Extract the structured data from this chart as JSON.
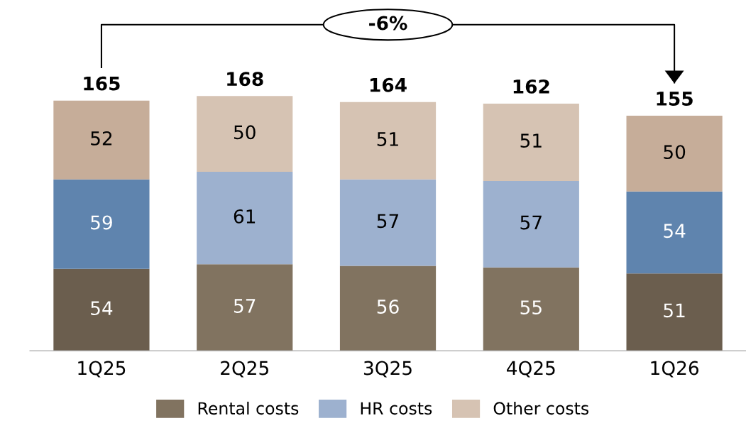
{
  "chart_data": {
    "type": "bar",
    "stacked": true,
    "categories": [
      "1Q25",
      "2Q25",
      "3Q25",
      "4Q25",
      "1Q26"
    ],
    "series": [
      {
        "name": "Rental costs",
        "color": "#817360",
        "colors": [
          "#6b5e4e",
          "#817360",
          "#817360",
          "#817360",
          "#6b5e4e"
        ],
        "values": [
          54,
          57,
          56,
          55,
          51
        ]
      },
      {
        "name": "HR costs",
        "color": "#9db1cf",
        "colors": [
          "#5f84ae",
          "#9db1cf",
          "#9db1cf",
          "#9db1cf",
          "#5f84ae"
        ],
        "values": [
          59,
          61,
          57,
          57,
          54
        ]
      },
      {
        "name": "Other costs",
        "color": "#d6c3b3",
        "colors": [
          "#c6ad99",
          "#d6c3b3",
          "#d6c3b3",
          "#d6c3b3",
          "#c6ad99"
        ],
        "values": [
          52,
          50,
          51,
          51,
          50
        ]
      }
    ],
    "totals": [
      "165",
      "168",
      "164",
      "162",
      "155"
    ],
    "data_labels": true,
    "legend": "bottom",
    "grid": false,
    "annotations": [
      "-6%"
    ]
  }
}
